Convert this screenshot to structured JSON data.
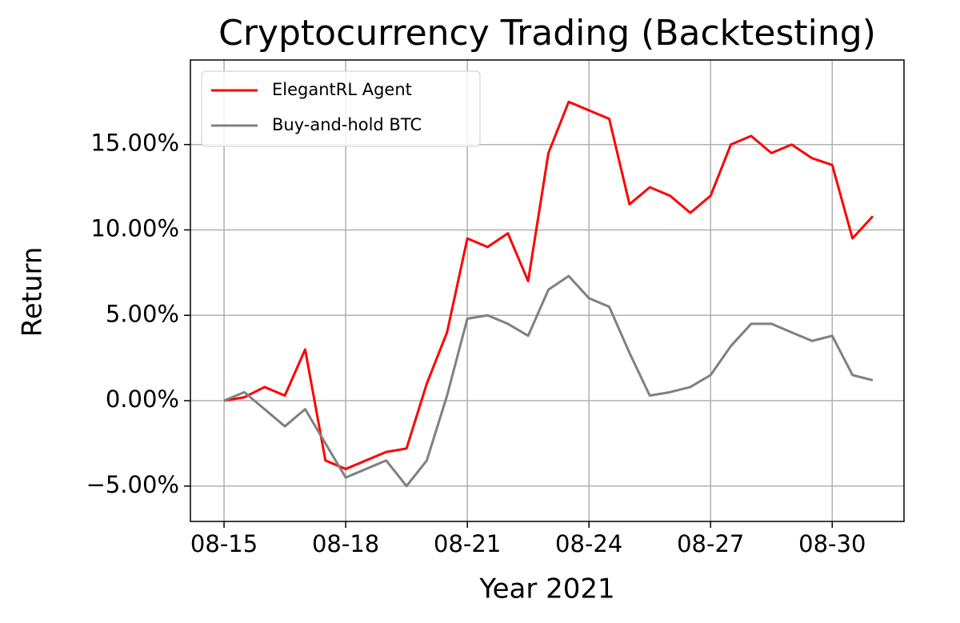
{
  "chart_data": {
    "type": "line",
    "title": "Cryptocurrency Trading (Backtesting)",
    "x_label": "Year 2021",
    "y_label": "Return",
    "x": [
      0,
      0.5,
      1,
      1.5,
      2,
      2.5,
      3,
      3.5,
      4,
      4.5,
      5,
      5.5,
      6,
      6.5,
      7,
      7.5,
      8,
      8.5,
      9,
      9.5,
      10,
      10.5,
      11,
      11.5,
      12,
      12.5,
      13,
      13.5,
      14,
      14.5,
      15,
      15.5,
      16
    ],
    "series": [
      {
        "name": "ElegantRL Agent",
        "color": "#ff0000",
        "values": [
          0,
          0.2,
          0.8,
          0.3,
          3.0,
          -3.5,
          -4.0,
          -3.5,
          -3.0,
          -2.8,
          1.0,
          4.0,
          9.5,
          9.0,
          9.8,
          7.0,
          14.5,
          17.5,
          17.0,
          16.5,
          11.5,
          12.5,
          12.0,
          11.0,
          12.0,
          15.0,
          15.5,
          14.5,
          15.0,
          14.2,
          13.8,
          9.5,
          10.8
        ]
      },
      {
        "name": "Buy-and-hold BTC",
        "color": "#808080",
        "values": [
          0,
          0.5,
          -0.5,
          -1.5,
          -0.5,
          -2.5,
          -4.5,
          -4.0,
          -3.5,
          -5.0,
          -3.5,
          0.3,
          4.8,
          5.0,
          4.5,
          3.8,
          6.5,
          7.3,
          6.0,
          5.5,
          2.8,
          0.3,
          0.5,
          0.8,
          1.5,
          3.2,
          4.5,
          4.5,
          4.0,
          3.5,
          3.8,
          1.5,
          1.2
        ]
      }
    ],
    "xlim": [
      -0.83,
      16.77
    ],
    "xticks": [
      {
        "value": 0,
        "label": "08-15"
      },
      {
        "value": 3,
        "label": "08-18"
      },
      {
        "value": 6,
        "label": "08-21"
      },
      {
        "value": 9,
        "label": "08-24"
      },
      {
        "value": 12,
        "label": "08-27"
      },
      {
        "value": 15,
        "label": "08-30"
      }
    ],
    "ylim": [
      -7.07,
      19.95
    ],
    "yticks": [
      {
        "value": -5,
        "label": "−5.00%"
      },
      {
        "value": 0,
        "label": "0.00%"
      },
      {
        "value": 5,
        "label": "5.00%"
      },
      {
        "value": 10,
        "label": "10.00%"
      },
      {
        "value": 15,
        "label": "15.00%"
      }
    ],
    "grid": true,
    "legend": "upper left"
  }
}
